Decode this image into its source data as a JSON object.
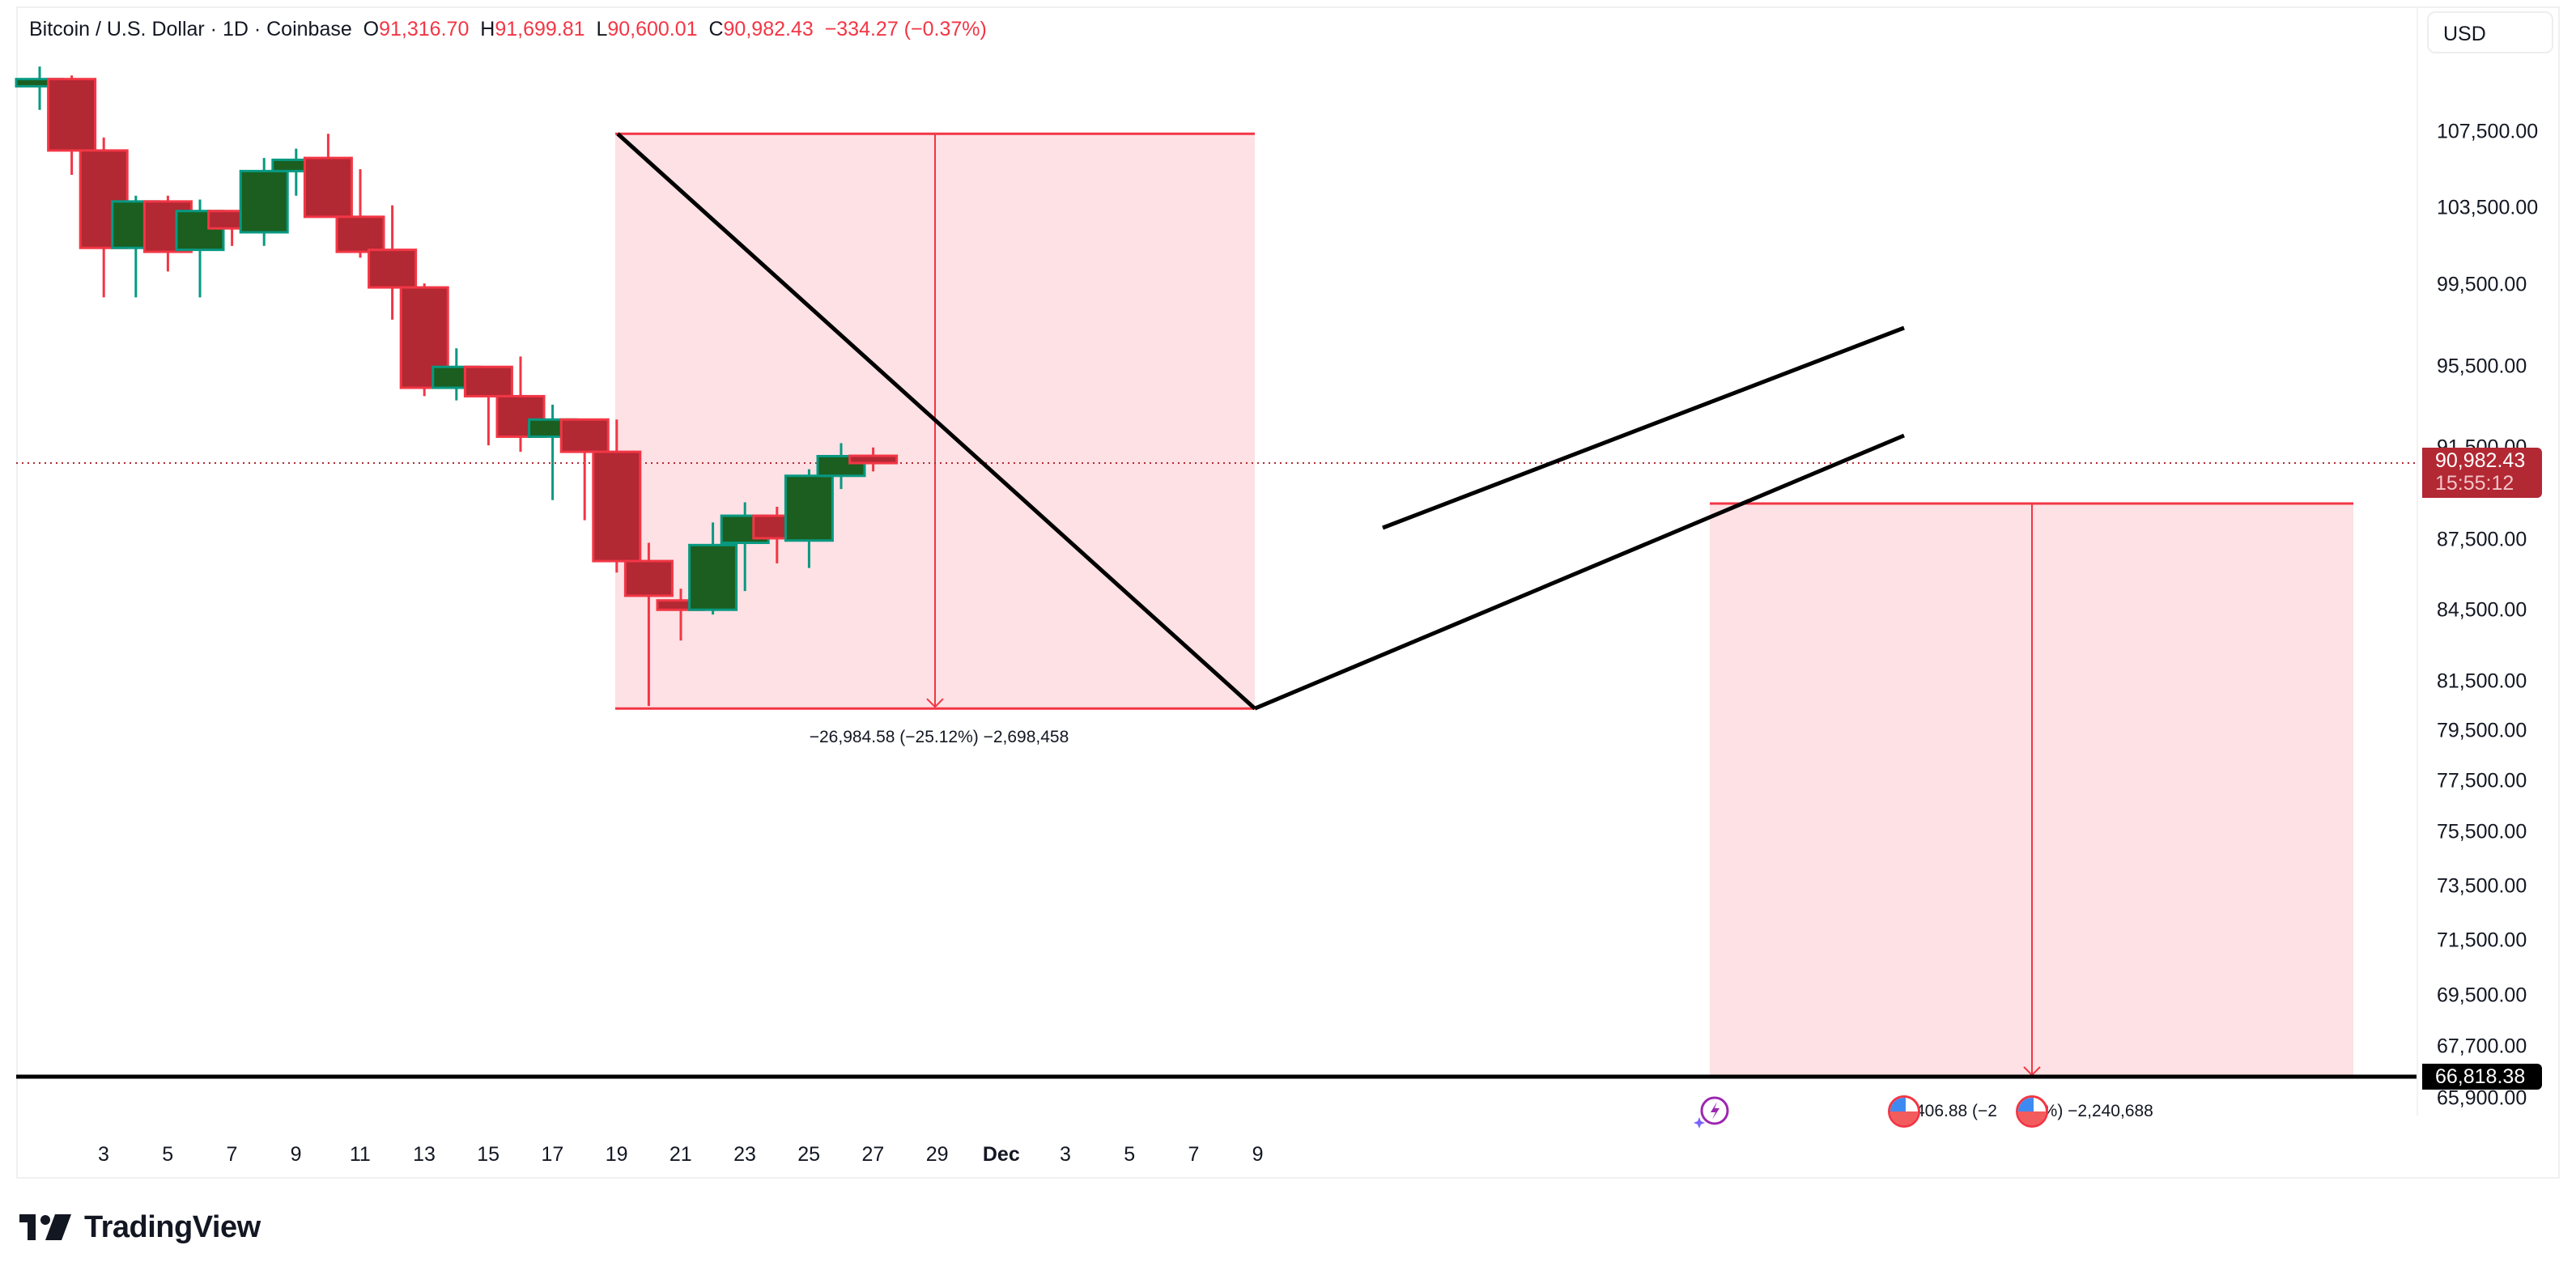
{
  "header": {
    "symbol": "Bitcoin / U.S. Dollar · 1D · Coinbase",
    "open_label": "O",
    "open": "91,316.70",
    "high_label": "H",
    "high": "91,699.81",
    "low_label": "L",
    "low": "90,600.01",
    "close_label": "C",
    "close": "90,982.43",
    "change": "−334.27 (−0.37%)"
  },
  "currency_button": "USD",
  "price_axis": {
    "labels": [
      "107,500.00",
      "103,500.00",
      "99,500.00",
      "95,500.00",
      "91,500.00",
      "87,500.00",
      "84,500.00",
      "81,500.00",
      "79,500.00",
      "77,500.00",
      "75,500.00",
      "73,500.00",
      "71,500.00",
      "69,500.00",
      "67,700.00",
      "65,900.00"
    ],
    "last_price": "90,982.43",
    "countdown": "15:55:12",
    "level_price": "66,818.38"
  },
  "date_axis": {
    "labels": [
      "3",
      "5",
      "7",
      "9",
      "11",
      "13",
      "15",
      "17",
      "19",
      "21",
      "23",
      "25",
      "27",
      "29",
      "Dec",
      "3",
      "5",
      "7",
      "9"
    ]
  },
  "measurements": {
    "first": "−26,984.58 (−25.12%) −2,698,458",
    "second": ",406.88 (−2",
    "second_tail": "2%) −2,240,688"
  },
  "branding": {
    "logo_mark": "17",
    "logo_text": "TradingView"
  },
  "colors": {
    "up_body": "#1b5e20",
    "up_border": "#089981",
    "down_body": "#b22833",
    "down_border": "#f23645",
    "measure_fill": "#fde1e4",
    "measure_line": "#f23645",
    "trendline": "#000000",
    "price_line": "#b22833"
  },
  "chart_data": {
    "type": "candlestick",
    "title": "Bitcoin / U.S. Dollar · 1D · Coinbase",
    "xlabel": "",
    "ylabel": "USD",
    "scale": "log",
    "ylim": [
      65000,
      112000
    ],
    "categories": [
      "Nov 2",
      "Nov 3",
      "Nov 4",
      "Nov 5",
      "Nov 6",
      "Nov 7",
      "Nov 8",
      "Nov 9",
      "Nov 10",
      "Nov 11",
      "Nov 12",
      "Nov 13",
      "Nov 14",
      "Nov 15",
      "Nov 16",
      "Nov 17",
      "Nov 18",
      "Nov 19",
      "Nov 20",
      "Nov 21",
      "Nov 22",
      "Nov 23",
      "Nov 24",
      "Nov 25",
      "Nov 26",
      "Nov 27",
      "Nov 28"
    ],
    "ohlc": [
      [
        110000,
        111100,
        108700,
        110400
      ],
      [
        110400,
        110600,
        105200,
        106500
      ],
      [
        106500,
        107200,
        98900,
        101400
      ],
      [
        101400,
        104100,
        98900,
        103800
      ],
      [
        103800,
        104100,
        100200,
        101200
      ],
      [
        101300,
        103900,
        98900,
        103300
      ],
      [
        103300,
        103300,
        101500,
        102400
      ],
      [
        102200,
        106100,
        101500,
        105400
      ],
      [
        105400,
        106600,
        104100,
        106000
      ],
      [
        106100,
        107400,
        103100,
        103000
      ],
      [
        103000,
        105500,
        100900,
        101200
      ],
      [
        101300,
        103600,
        97800,
        99400
      ],
      [
        99400,
        99600,
        94100,
        94500
      ],
      [
        94500,
        96400,
        93900,
        95500
      ],
      [
        95500,
        95500,
        91800,
        94100
      ],
      [
        94100,
        96000,
        91500,
        92200
      ],
      [
        92200,
        93700,
        89300,
        93000
      ],
      [
        93000,
        93000,
        88400,
        91500
      ],
      [
        91500,
        93000,
        86100,
        86600
      ],
      [
        86600,
        87400,
        80500,
        85100
      ],
      [
        84900,
        85400,
        83200,
        84500
      ],
      [
        84500,
        88300,
        84300,
        87300
      ],
      [
        87400,
        89200,
        85300,
        88600
      ],
      [
        88600,
        89000,
        86500,
        87600
      ],
      [
        87500,
        90700,
        86300,
        90400
      ],
      [
        90400,
        91900,
        89800,
        91300
      ],
      [
        91316.7,
        91699.81,
        90600.01,
        90982.43
      ]
    ],
    "annotations": [
      {
        "type": "price_range",
        "from": 107400,
        "to": 80400,
        "label": "−26,984.58 (−25.12%) −2,698,458"
      },
      {
        "type": "price_range",
        "from": 89300,
        "to": 66818,
        "label": "…,406.88 (−2…2%) −2,240,688"
      },
      {
        "type": "trendline",
        "from": [
          "Nov 11",
          107400
        ],
        "to": [
          "Nov 21",
          80400
        ]
      },
      {
        "type": "parallel_channel",
        "lower": [
          [
            "Nov 21",
            80400
          ],
          [
            "Dec 1",
            96700
          ]
        ],
        "upper": [
          [
            "Nov 23",
            88300
          ],
          [
            "Dec 1",
            97200
          ]
        ]
      },
      {
        "type": "horizontal_line",
        "price": 66818.38
      }
    ]
  }
}
